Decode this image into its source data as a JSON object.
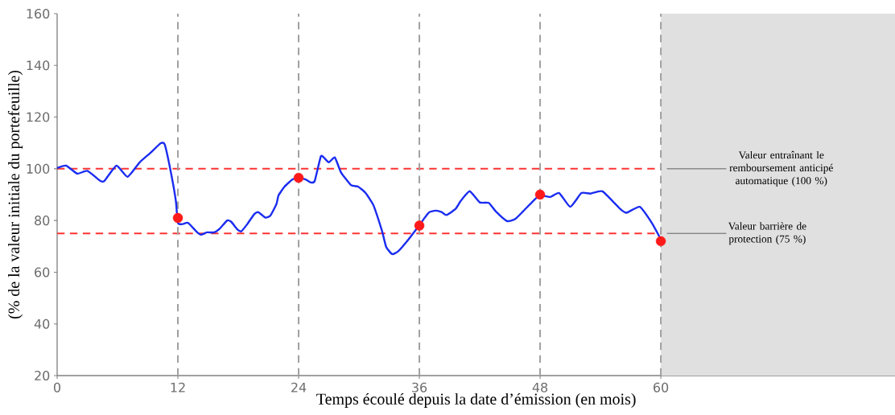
{
  "chart_data": {
    "type": "line",
    "xlabel": "Temps écoulé depuis la date d’émission (en mois)",
    "ylabel": "(% de la valeur initiale du portefeuille)",
    "xlim": [
      0,
      83.3
    ],
    "ylim": [
      20,
      160
    ],
    "xticks": [
      0,
      12,
      24,
      36,
      48,
      60
    ],
    "yticks": [
      20,
      40,
      60,
      80,
      100,
      120,
      140,
      160
    ],
    "grid": false,
    "series": [
      {
        "type": "line",
        "color": "#1a2cf0",
        "marker": "none",
        "line_style": "solid",
        "x": [
          0,
          0.9,
          2.0,
          3.0,
          4.3,
          4.7,
          5.9,
          7.0,
          8.2,
          9.2,
          10.3,
          10.7,
          11.3,
          11.8,
          12.0,
          12.5,
          13.0,
          13.9,
          14.3,
          14.9,
          15.6,
          16.2,
          16.9,
          17.3,
          17.9,
          18.3,
          18.9,
          19.6,
          20.0,
          20.7,
          21.2,
          21.8,
          22.0,
          22.6,
          23.4,
          24.0,
          24.7,
          25.2,
          25.6,
          26.2,
          26.5,
          27.0,
          27.6,
          28.2,
          29.2,
          29.9,
          30.6,
          31.2,
          31.5,
          32.3,
          32.7,
          33.3,
          33.9,
          34.9,
          36.0,
          36.6,
          37.0,
          37.6,
          38.2,
          38.7,
          39.6,
          40.1,
          41.0,
          42.0,
          42.9,
          43.6,
          44.7,
          45.5,
          46.3,
          47.3,
          48.0,
          49.0,
          49.9,
          51.0,
          52.1,
          53.0,
          54.2,
          55.9,
          56.6,
          57.9,
          59.1,
          60.0
        ],
        "values": [
          100.3,
          101.2,
          98.1,
          99.2,
          95.3,
          95.3,
          101.2,
          96.9,
          102.5,
          105.9,
          109.9,
          109.3,
          98.7,
          87.5,
          79.1,
          78.6,
          79.1,
          75.5,
          74.5,
          75.4,
          75.4,
          77,
          80,
          79.5,
          76.6,
          75.8,
          78.6,
          82.5,
          83.2,
          81.1,
          81.9,
          86.4,
          89.7,
          93.1,
          95.9,
          96.4,
          95.9,
          94.7,
          95.3,
          104.7,
          104.4,
          102.5,
          104.4,
          98.7,
          93.7,
          93.1,
          90.9,
          87.5,
          85.3,
          75.8,
          69.8,
          67,
          68.1,
          72.6,
          78.2,
          81.4,
          83.2,
          83.8,
          83.3,
          82.1,
          84.5,
          87.5,
          91.3,
          87,
          86.8,
          83.5,
          79.8,
          80.5,
          83.5,
          87.5,
          89.8,
          89.1,
          90.6,
          85.3,
          90.6,
          90.4,
          91.3,
          84.7,
          83,
          85.3,
          79.1,
          72.7
        ]
      },
      {
        "type": "scatter",
        "color": "#ff1a1a",
        "marker": "circle",
        "x": [
          12,
          24,
          36,
          48,
          60
        ],
        "values": [
          81,
          96.5,
          78,
          90,
          72
        ]
      }
    ],
    "ref_lines": [
      {
        "axis": "y",
        "value": 100,
        "color": "#ff3333",
        "line_style": "dashed",
        "label": "Valeur entraînant le remboursement anticipé automatique (100 %)"
      },
      {
        "axis": "y",
        "value": 75,
        "color": "#ff3333",
        "line_style": "dashed",
        "label": "Valeur barrière de protection (75 %)"
      },
      {
        "axis": "x",
        "value": 12,
        "color": "#a0a0a0",
        "line_style": "dashed"
      },
      {
        "axis": "x",
        "value": 24,
        "color": "#a0a0a0",
        "line_style": "dashed"
      },
      {
        "axis": "x",
        "value": 36,
        "color": "#a0a0a0",
        "line_style": "dashed"
      },
      {
        "axis": "x",
        "value": 48,
        "color": "#a0a0a0",
        "line_style": "dashed"
      },
      {
        "axis": "x",
        "value": 60,
        "color": "#a0a0a0",
        "line_style": "dashed"
      }
    ],
    "bands": [
      {
        "axis": "x",
        "from": 60,
        "to": 83.3,
        "color": "#e0e0e0"
      }
    ]
  }
}
